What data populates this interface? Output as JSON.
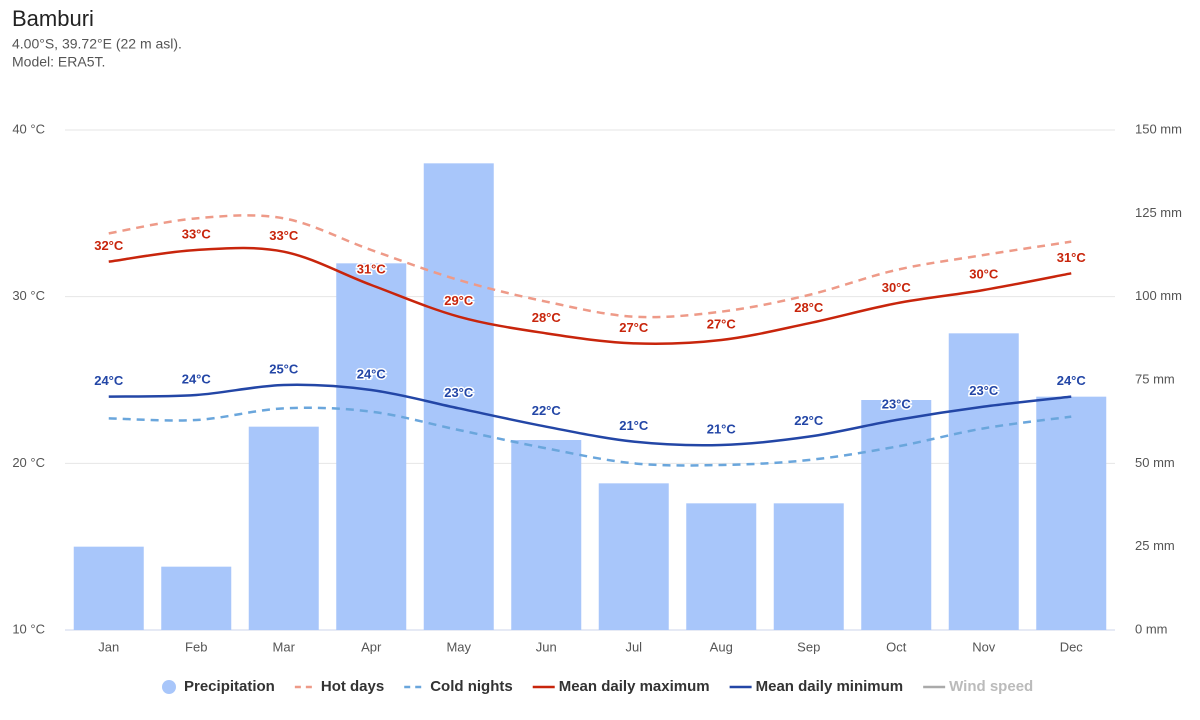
{
  "chart_data": {
    "type": "combo",
    "title": "Bamburi",
    "subtitle": [
      "4.00°S, 39.72°E (22 m asl).",
      "Model: ERA5T."
    ],
    "categories": [
      "Jan",
      "Feb",
      "Mar",
      "Apr",
      "May",
      "Jun",
      "Jul",
      "Aug",
      "Sep",
      "Oct",
      "Nov",
      "Dec"
    ],
    "ylim": [
      10,
      40
    ],
    "yticks": [
      {
        "value": 10,
        "label": "10 °C"
      },
      {
        "value": 20,
        "label": "20 °C"
      },
      {
        "value": 30,
        "label": "30 °C"
      },
      {
        "value": 40,
        "label": "40 °C"
      }
    ],
    "y2lim": [
      0,
      150
    ],
    "y2ticks": [
      {
        "value": 0,
        "label": "0 mm"
      },
      {
        "value": 25,
        "label": "25 mm"
      },
      {
        "value": 50,
        "label": "50 mm"
      },
      {
        "value": 75,
        "label": "75 mm"
      },
      {
        "value": 100,
        "label": "100 mm"
      },
      {
        "value": 125,
        "label": "125 mm"
      },
      {
        "value": 150,
        "label": "150 mm"
      }
    ],
    "grid": true,
    "legend": "bottom",
    "series": [
      {
        "name": "Precipitation",
        "type": "bar",
        "axis": "y2",
        "color": "#a8c6fa",
        "values": [
          25,
          19,
          61,
          110,
          140,
          57,
          44,
          38,
          38,
          69,
          89,
          70
        ]
      },
      {
        "name": "Hot days",
        "type": "line",
        "dash": true,
        "color": "#ee9a88",
        "values": [
          33.8,
          34.7,
          34.7,
          32.8,
          31.0,
          29.7,
          28.8,
          29.1,
          30.1,
          31.6,
          32.5,
          33.3
        ]
      },
      {
        "name": "Cold nights",
        "type": "line",
        "dash": true,
        "color": "#6aa6dc",
        "values": [
          22.7,
          22.6,
          23.3,
          23.1,
          22.0,
          20.9,
          20.0,
          19.9,
          20.2,
          21.0,
          22.1,
          22.8
        ]
      },
      {
        "name": "Mean daily maximum",
        "type": "line",
        "color": "#c8250c",
        "values": [
          32.1,
          32.8,
          32.7,
          30.7,
          28.8,
          27.8,
          27.2,
          27.4,
          28.4,
          29.6,
          30.4,
          31.4
        ],
        "value_labels": [
          "32°C",
          "33°C",
          "33°C",
          "31°C",
          "29°C",
          "28°C",
          "27°C",
          "27°C",
          "28°C",
          "30°C",
          "30°C",
          "31°C"
        ]
      },
      {
        "name": "Mean daily minimum",
        "type": "line",
        "color": "#2346a6",
        "values": [
          24.0,
          24.1,
          24.7,
          24.4,
          23.3,
          22.2,
          21.3,
          21.1,
          21.6,
          22.6,
          23.4,
          24.0
        ],
        "value_labels": [
          "24°C",
          "24°C",
          "25°C",
          "24°C",
          "23°C",
          "22°C",
          "21°C",
          "21°C",
          "22°C",
          "23°C",
          "23°C",
          "24°C"
        ]
      },
      {
        "name": "Wind speed",
        "type": "hidden",
        "color": "#aaaaaa"
      }
    ]
  }
}
